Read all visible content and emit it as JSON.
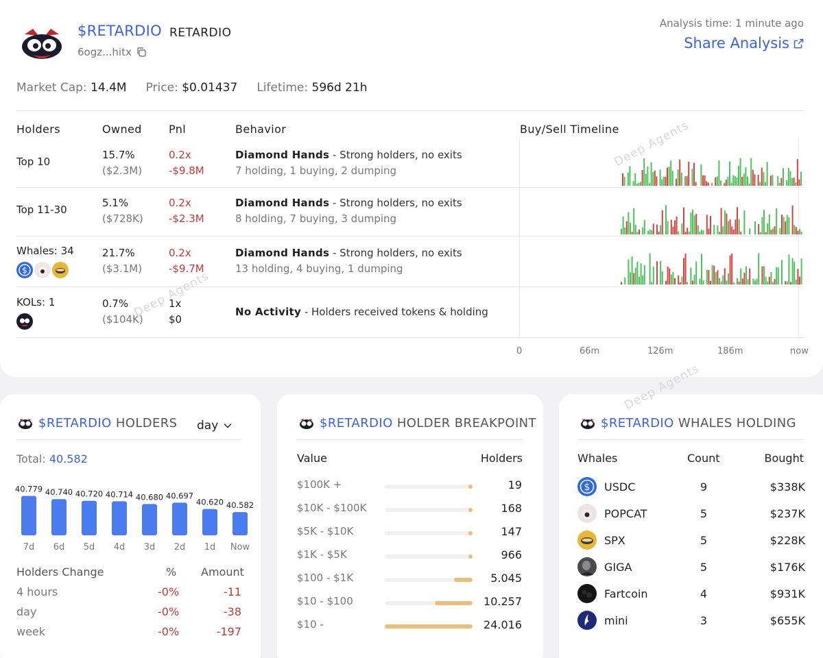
{
  "token": {
    "symbol": "$RETARDIO",
    "name": "RETARDIO",
    "address": "6ogz...hitx",
    "analysis_time": "Analysis time: 1 minute ago",
    "share_label": "Share Analysis"
  },
  "stats": {
    "market_cap_label": "Market Cap:",
    "market_cap": "14.4M",
    "price_label": "Price:",
    "price": "$0.01437",
    "lifetime_label": "Lifetime:",
    "lifetime": "596d 21h"
  },
  "holders_table": {
    "headers": [
      "Holders",
      "Owned",
      "Pnl",
      "Behavior",
      "Buy/Sell Timeline"
    ],
    "rows": [
      {
        "holders": "Top 10",
        "owned_pct": "15.7%",
        "owned_usd": "($2.3M)",
        "pnl_x": "0.2x",
        "pnl_usd": "-$9.8M",
        "behavior_title": "Diamond Hands",
        "behavior_desc": " - Strong holders, no exits",
        "behavior_sub": "7 holding, 1 buying, 2 dumping"
      },
      {
        "holders": "Top 11-30",
        "owned_pct": "5.1%",
        "owned_usd": "($728K)",
        "pnl_x": "0.2x",
        "pnl_usd": "-$2.3M",
        "behavior_title": "Diamond Hands",
        "behavior_desc": " - Strong holders, no exits",
        "behavior_sub": "8 holding, 7 buying, 3 dumping"
      },
      {
        "holders": "Whales: 34",
        "owned_pct": "21.7%",
        "owned_usd": "($3.1M)",
        "pnl_x": "0.2x",
        "pnl_usd": "-$9.7M",
        "behavior_title": "Diamond Hands",
        "behavior_desc": " - Strong holders, no exits",
        "behavior_sub": "13 holding, 4 buying, 1 dumping"
      },
      {
        "holders": "KOLs: 1",
        "owned_pct": "0.7%",
        "owned_usd": "($104K)",
        "pnl_x": "1x",
        "pnl_usd": "$0",
        "behavior_title": "No Activity",
        "behavior_desc": " - Holders received tokens & holding",
        "behavior_sub": ""
      }
    ],
    "timeline_axis": [
      "0",
      "66m",
      "126m",
      "186m",
      "now"
    ]
  },
  "watermark": "Deep Agents",
  "holders_card": {
    "symbol": "$RETARDIO",
    "title": "HOLDERS",
    "period": "day",
    "total_label": "Total:",
    "total": "40.582",
    "chart_data": {
      "type": "bar",
      "categories": [
        "7d",
        "6d",
        "5d",
        "4d",
        "3d",
        "2d",
        "1d",
        "Now"
      ],
      "values": [
        40779,
        40740,
        40720,
        40714,
        40680,
        40697,
        40620,
        40582
      ],
      "value_labels": [
        "40.779",
        "40.740",
        "40.720",
        "40.714",
        "40.680",
        "40.697",
        "40.620",
        "40.582"
      ],
      "color": "#4a7cf0"
    },
    "change_headers": [
      "Holders Change",
      "%",
      "Amount"
    ],
    "changes": [
      {
        "period": "4 hours",
        "pct": "-0%",
        "amount": "-11"
      },
      {
        "period": "day",
        "pct": "-0%",
        "amount": "-38"
      },
      {
        "period": "week",
        "pct": "-0%",
        "amount": "-197"
      }
    ]
  },
  "breakpoint_card": {
    "symbol": "$RETARDIO",
    "title": "HOLDER BREAKPOINT",
    "headers": [
      "Value",
      "Holders"
    ],
    "rows": [
      {
        "range": "$100K +",
        "holders": "19",
        "count": 19
      },
      {
        "range": "$10K - $100K",
        "holders": "168",
        "count": 168
      },
      {
        "range": "$5K - $10K",
        "holders": "147",
        "count": 147
      },
      {
        "range": "$1K - $5K",
        "holders": "966",
        "count": 966
      },
      {
        "range": "$100 - $1K",
        "holders": "5.045",
        "count": 5045
      },
      {
        "range": "$10 - $100",
        "holders": "10.257",
        "count": 10257
      },
      {
        "range": "$10 -",
        "holders": "24.016",
        "count": 24016
      }
    ],
    "bar_color": "#edbd7a"
  },
  "whales_card": {
    "symbol": "$RETARDIO",
    "title": "WHALES HOLDING",
    "headers": [
      "Whales",
      "Count",
      "Bought"
    ],
    "rows": [
      {
        "name": "USDC",
        "count": "9",
        "bought": "$338K",
        "icon": "usdc-icon"
      },
      {
        "name": "POPCAT",
        "count": "5",
        "bought": "$237K",
        "icon": "popcat-icon"
      },
      {
        "name": "SPX",
        "count": "5",
        "bought": "$228K",
        "icon": "spx-icon"
      },
      {
        "name": "GIGA",
        "count": "5",
        "bought": "$176K",
        "icon": "giga-icon"
      },
      {
        "name": "Fartcoin",
        "count": "4",
        "bought": "$931K",
        "icon": "fartcoin-icon"
      },
      {
        "name": "mini",
        "count": "3",
        "bought": "$655K",
        "icon": "mini-icon"
      }
    ]
  },
  "colors": {
    "accent": "#3b63d8",
    "negative": "#c0393b",
    "buy": "#4cc25a",
    "sell": "#d9423f"
  }
}
